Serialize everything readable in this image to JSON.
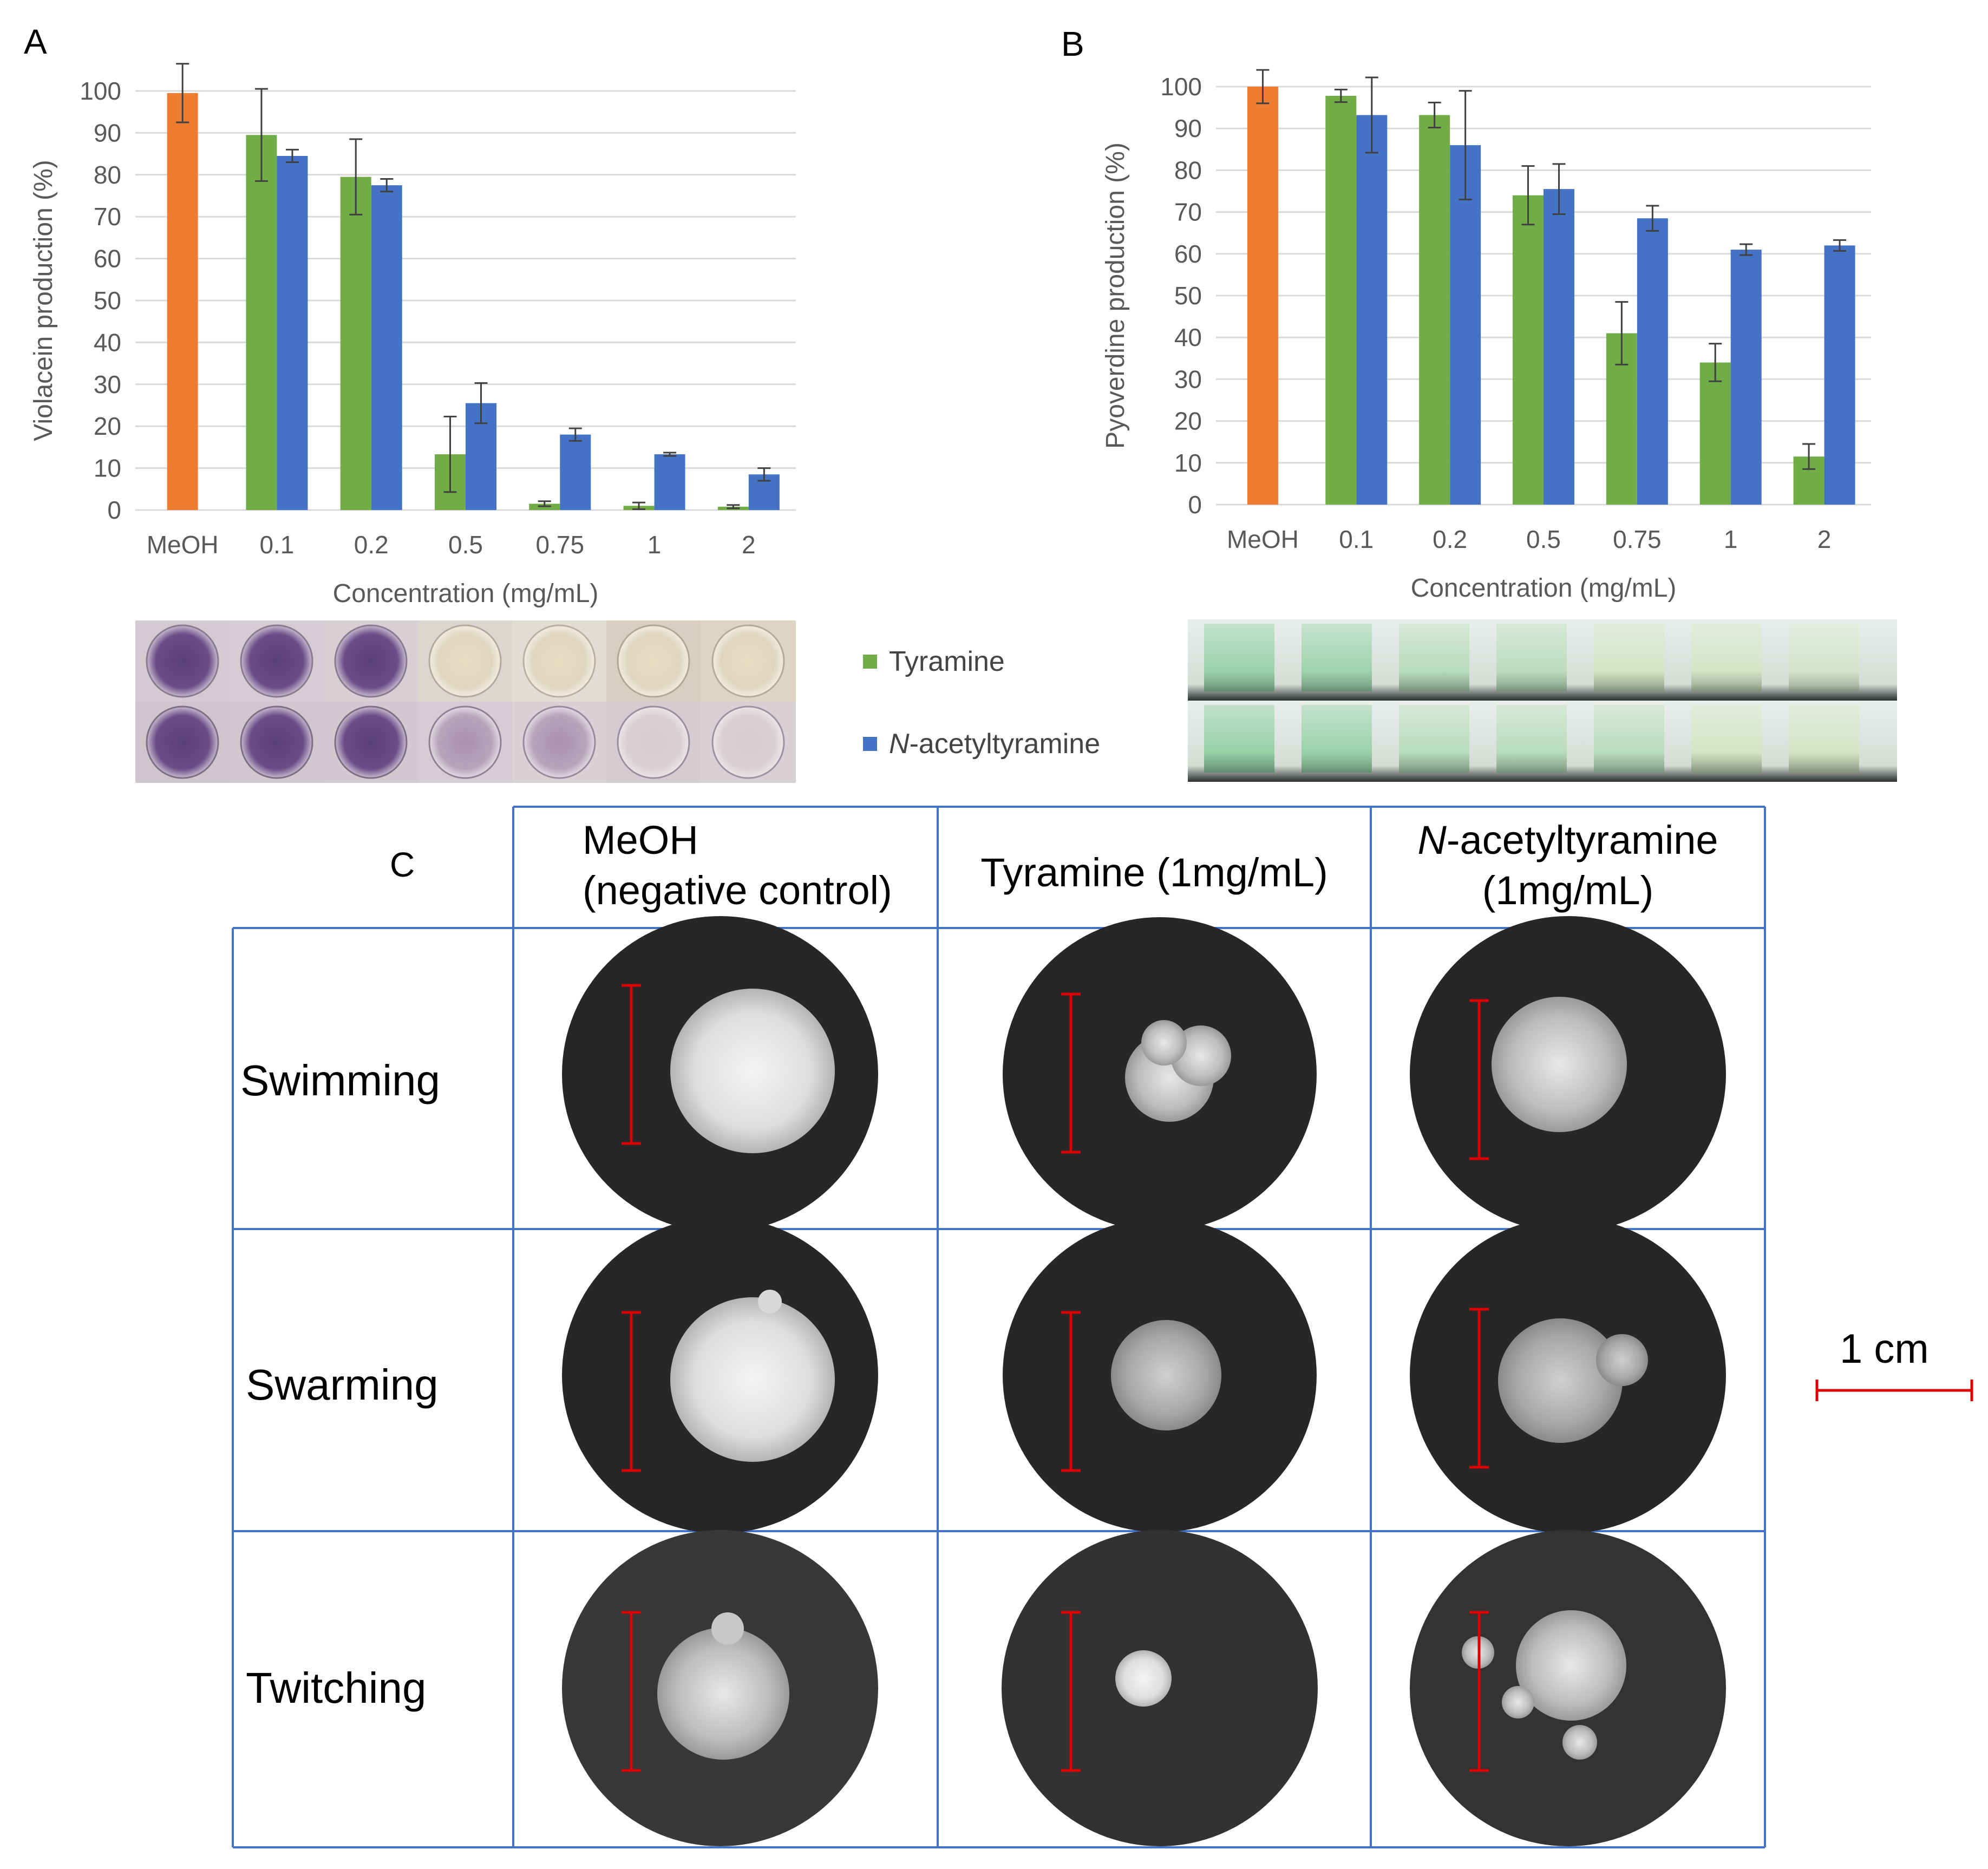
{
  "panels": {
    "a": "A",
    "b": "B",
    "c": "C"
  },
  "legend": {
    "tyramine": "Tyramine",
    "n_acetyl_italic": "N",
    "n_acetyl_rest": "-acetyltyramine"
  },
  "colors": {
    "meoh": "#ED7D31",
    "tyramine": "#70AD47",
    "n_acetyltyramine": "#4472C4",
    "grid_line": "#4472C4",
    "scale_bar": "#DD0000"
  },
  "chart_data": [
    {
      "type": "bar",
      "panel": "A",
      "title": "",
      "xlabel": "Concentration (mg/mL)",
      "ylabel": "Violacein production (%)",
      "ylim": [
        0,
        100
      ],
      "yticks": [
        0,
        10,
        20,
        30,
        40,
        50,
        60,
        70,
        80,
        90,
        100
      ],
      "categories": [
        "MeOH",
        "0.1",
        "0.2",
        "0.5",
        "0.75",
        "1",
        "2"
      ],
      "series": [
        {
          "name": "MeOH",
          "values": [
            99.5,
            null,
            null,
            null,
            null,
            null,
            null
          ],
          "errors": [
            7,
            null,
            null,
            null,
            null,
            null,
            null
          ]
        },
        {
          "name": "Tyramine",
          "values": [
            null,
            89.5,
            79.5,
            13.3,
            1.5,
            1.0,
            0.8
          ],
          "errors": [
            null,
            11,
            9,
            9,
            0.6,
            0.8,
            0.4
          ]
        },
        {
          "name": "N-acetyltyramine",
          "values": [
            null,
            84.5,
            77.5,
            25.5,
            18.0,
            13.3,
            8.5
          ],
          "errors": [
            null,
            1.5,
            1.5,
            4.8,
            1.5,
            0.4,
            1.5
          ]
        }
      ]
    },
    {
      "type": "bar",
      "panel": "B",
      "title": "",
      "xlabel": "Concentration (mg/mL)",
      "ylabel": "Pyoverdine production (%)",
      "ylim": [
        0,
        100
      ],
      "yticks": [
        0,
        10,
        20,
        30,
        40,
        50,
        60,
        70,
        80,
        90,
        100
      ],
      "categories": [
        "MeOH",
        "0.1",
        "0.2",
        "0.5",
        "0.75",
        "1",
        "2"
      ],
      "series": [
        {
          "name": "MeOH",
          "values": [
            100,
            null,
            null,
            null,
            null,
            null,
            null
          ],
          "errors": [
            4,
            null,
            null,
            null,
            null,
            null,
            null
          ]
        },
        {
          "name": "Tyramine",
          "values": [
            null,
            97.8,
            93.2,
            74.0,
            41.0,
            34.0,
            11.5
          ],
          "errors": [
            null,
            1.5,
            3,
            7,
            7.5,
            4.5,
            3
          ]
        },
        {
          "name": "N-acetyltyramine",
          "values": [
            null,
            93.2,
            86.0,
            75.5,
            68.5,
            61.0,
            62.0
          ],
          "errors": [
            null,
            9,
            13,
            6,
            3,
            1.3,
            1.3
          ]
        }
      ]
    }
  ],
  "table": {
    "headers": {
      "meoh_line1": "MeOH",
      "meoh_line2": "(negative control)",
      "tyramine": "Tyramine (1mg/mL)",
      "nacetyl_italic": "N",
      "nacetyl_rest": "-acetyltyramine",
      "nacetyl_line2": "(1mg/mL)"
    },
    "rows": [
      "Swimming",
      "Swarming",
      "Twitching"
    ]
  },
  "scale_bar": {
    "label": "1 cm"
  }
}
